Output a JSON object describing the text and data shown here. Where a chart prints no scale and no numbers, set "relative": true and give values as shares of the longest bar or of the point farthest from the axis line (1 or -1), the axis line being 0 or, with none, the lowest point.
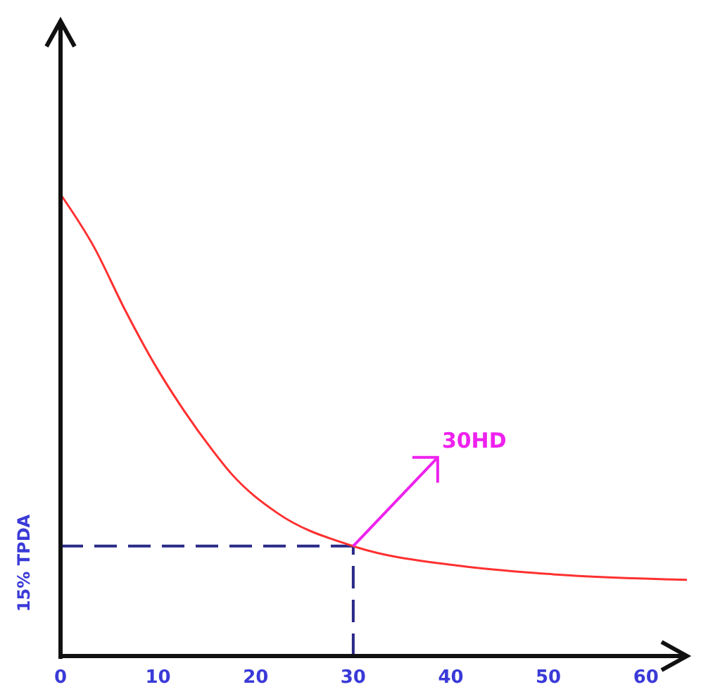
{
  "chart_data": {
    "type": "line",
    "relative": true,
    "ylabel": "15% TPDA",
    "x": [
      0,
      3.4,
      6.6,
      9.5,
      12.7,
      15.6,
      17.5,
      22.2,
      30,
      41,
      50.5,
      64.2
    ],
    "series": [
      {
        "color": "#ff3030",
        "values": [
          1,
          0.887,
          0.75,
          0.637,
          0.53,
          0.445,
          0.395,
          0.31,
          0.238,
          0.195,
          0.177,
          0.165
        ]
      }
    ],
    "xlim": [
      0,
      64.2
    ],
    "xticks": [
      0,
      10,
      20,
      30,
      40,
      50,
      60
    ],
    "ref_lines": [
      {
        "axis": "x",
        "value": 30,
        "color": "#2a2a88",
        "line_style": "dashed"
      },
      {
        "axis": "y",
        "value": 0.238,
        "color": "#2a2a88",
        "line_style": "dashed"
      }
    ],
    "annotations": [
      {
        "text": "30HD",
        "x": 30,
        "y": 0.238
      }
    ],
    "grid": false,
    "marker": "none",
    "line_style": "solid"
  }
}
